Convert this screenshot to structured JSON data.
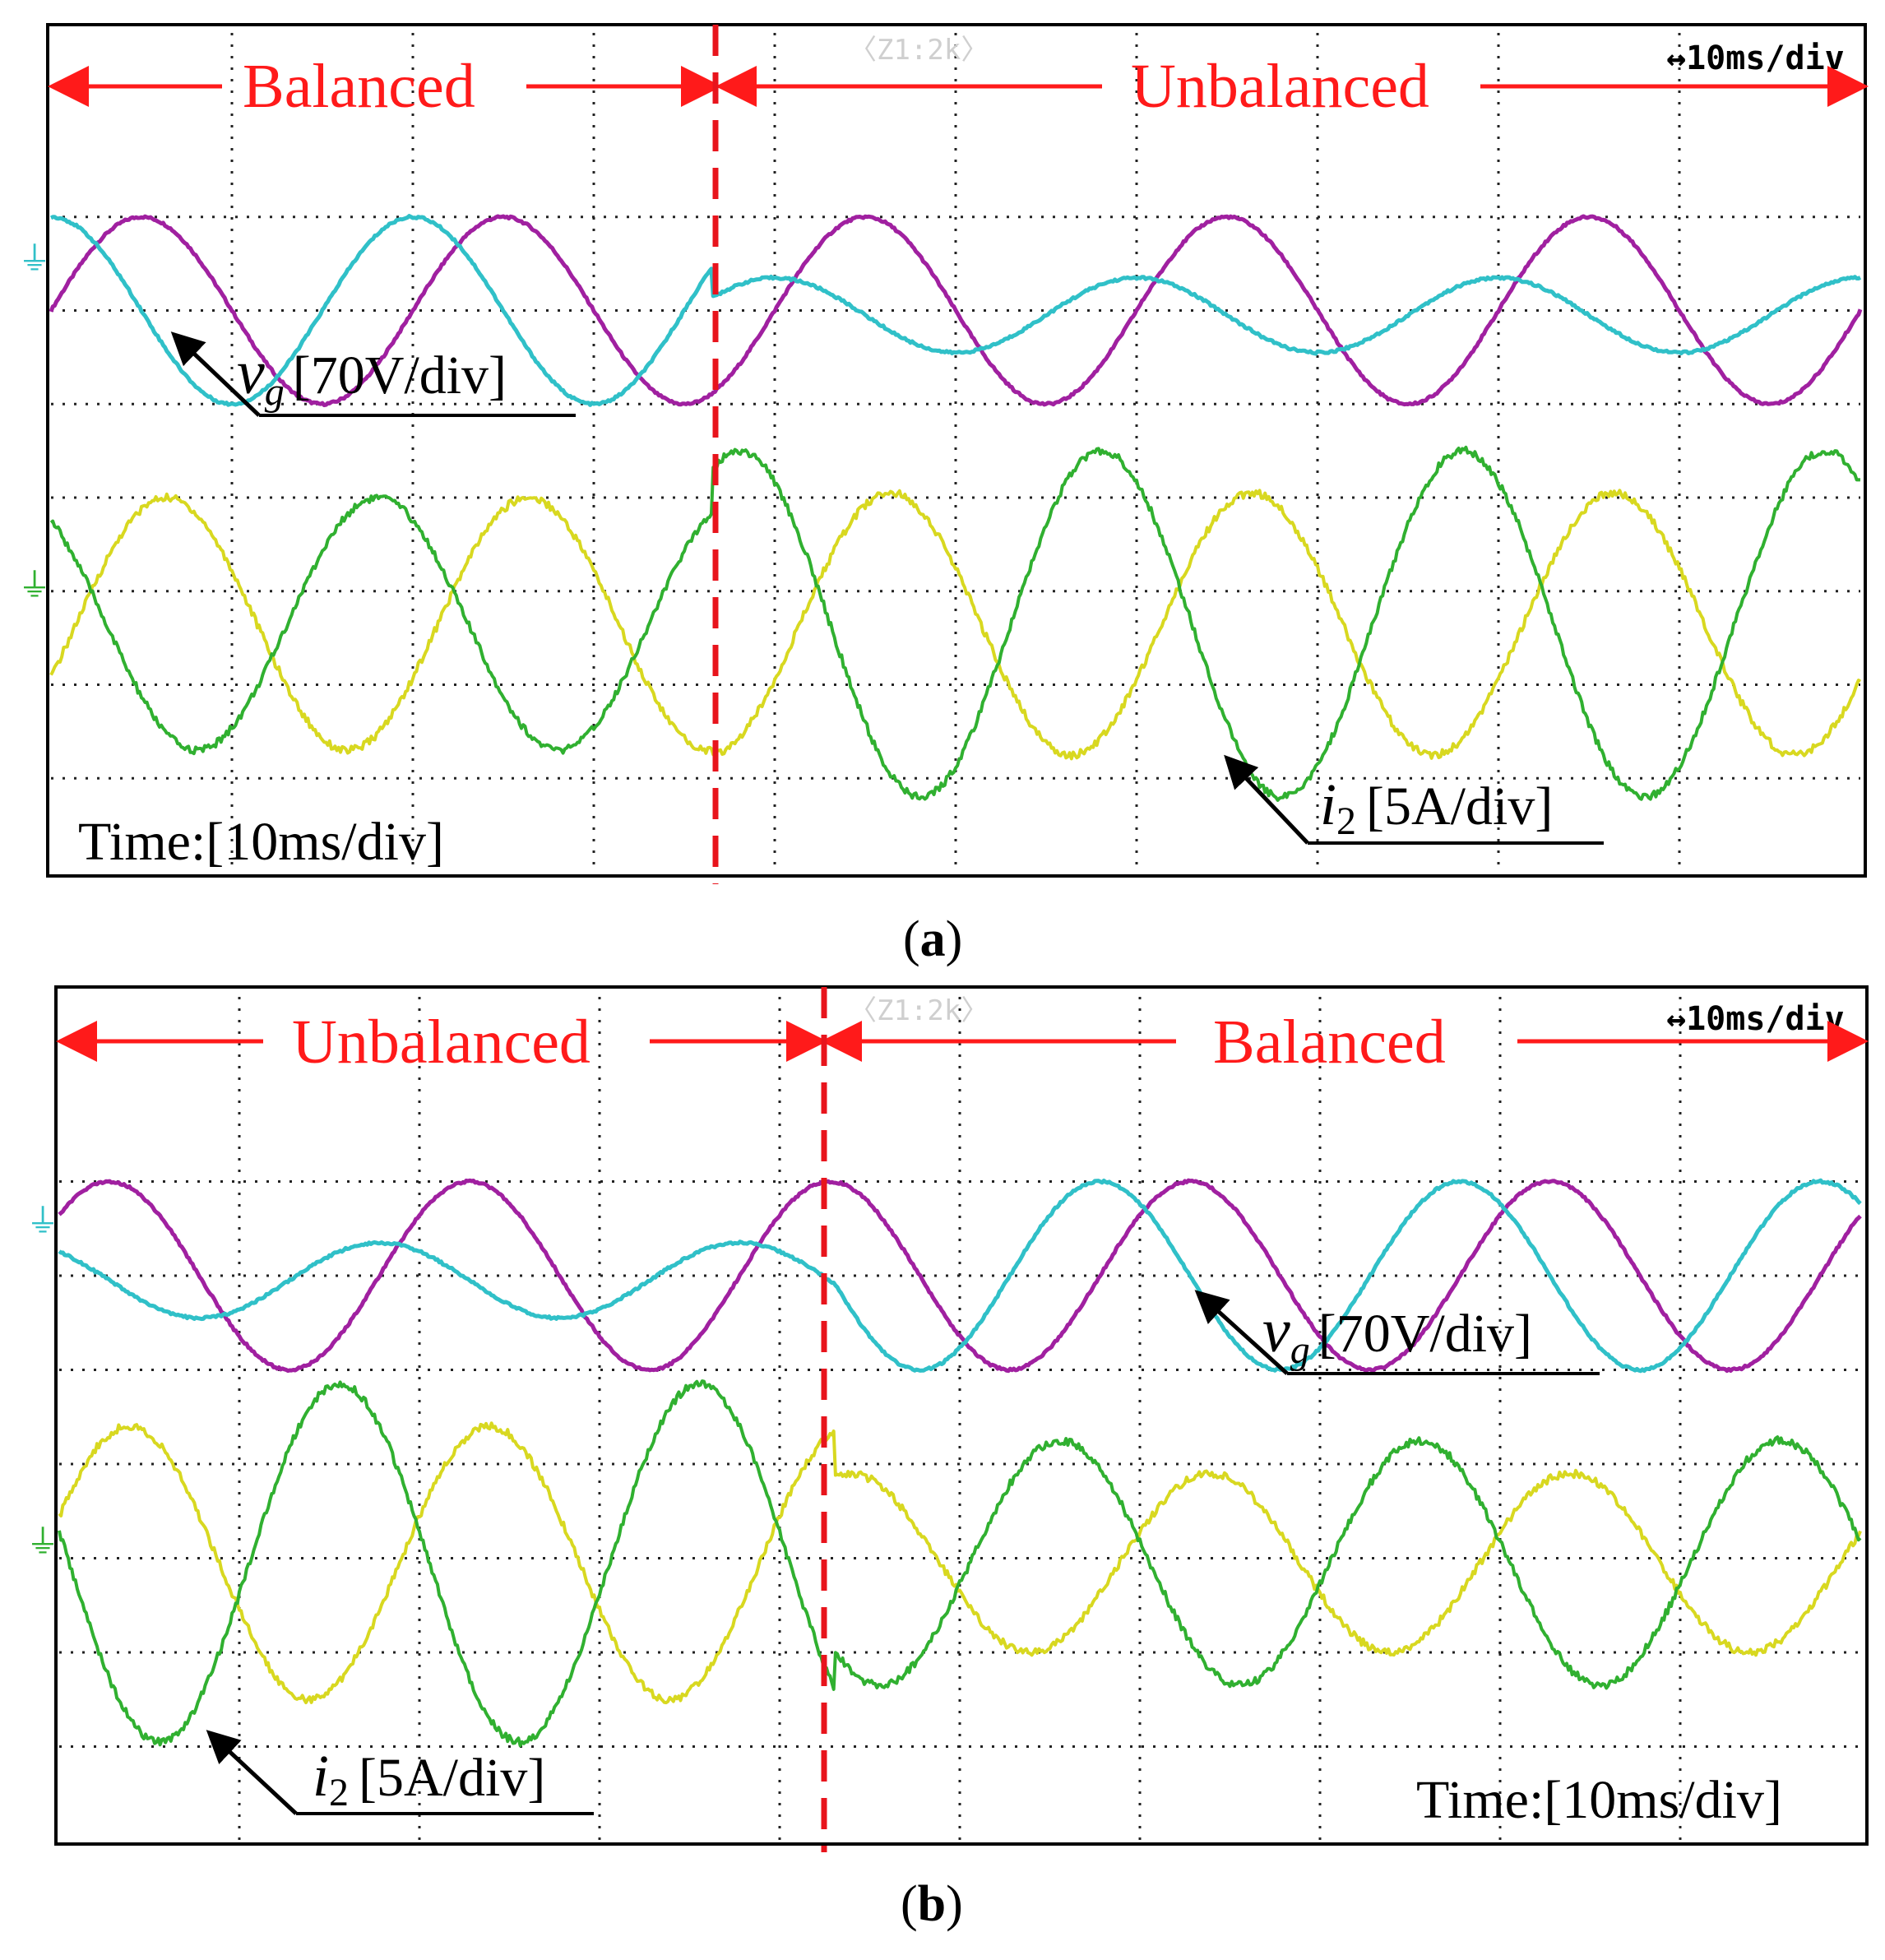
{
  "figure": {
    "panels": [
      "a",
      "b"
    ]
  },
  "chart_data": [
    {
      "type": "line",
      "panel": "a",
      "caption": "a",
      "time_label": "Time:[10ms/div]",
      "scale_header": "↔10ms/div",
      "zoom_header": "〈Z1:2k〉",
      "regions": [
        {
          "label": "Balanced",
          "from_div": 0,
          "to_div": 3.65
        },
        {
          "label": "Unbalanced",
          "from_div": 3.65,
          "to_div": 10
        }
      ],
      "transition_div": 3.65,
      "x_range_div": [
        0,
        10
      ],
      "y_range_div": [
        -4,
        4
      ],
      "grid": true,
      "period_div": 2.0,
      "annotations": [
        {
          "symbol": "v",
          "subscript": "g",
          "text": "[70V/div]"
        },
        {
          "symbol": "i",
          "subscript": "2",
          "text": "[5A/div]"
        }
      ],
      "series": [
        {
          "name": "vg phase 1",
          "color": "#a020a0",
          "group": "voltage",
          "amplitude_div": [
            1.0,
            1.0
          ],
          "offset_div": [
            2.0,
            2.0
          ],
          "phase_deg": 0
        },
        {
          "name": "vg phase 2",
          "color": "#30c0c8",
          "group": "voltage",
          "amplitude_div": [
            1.0,
            0.4
          ],
          "offset_div": [
            2.0,
            1.95
          ],
          "phase_deg": 90
        },
        {
          "name": "i2 phase 1",
          "color": "#d8d820",
          "group": "current",
          "amplitude_div": [
            1.35,
            1.4
          ],
          "offset_div": [
            -1.35,
            -1.35
          ],
          "phase_deg": -25
        },
        {
          "name": "i2 phase 2",
          "color": "#30b030",
          "group": "current",
          "amplitude_div": [
            1.35,
            1.85
          ],
          "offset_div": [
            -1.35,
            -1.35
          ],
          "phase_deg": 125
        }
      ]
    },
    {
      "type": "line",
      "panel": "b",
      "caption": "b",
      "time_label": "Time:[10ms/div]",
      "scale_header": "↔10ms/div",
      "zoom_header": "〈Z1:2k〉",
      "regions": [
        {
          "label": "Unbalanced",
          "from_div": 0,
          "to_div": 4.3
        },
        {
          "label": "Balanced",
          "from_div": 4.3,
          "to_div": 10
        }
      ],
      "transition_div": 4.3,
      "x_range_div": [
        0,
        10
      ],
      "y_range_div": [
        -4,
        4
      ],
      "grid": true,
      "period_div": 2.0,
      "annotations": [
        {
          "symbol": "v",
          "subscript": "g",
          "text": "[70V/div]"
        },
        {
          "symbol": "i",
          "subscript": "2",
          "text": "[5A/div]"
        }
      ],
      "series": [
        {
          "name": "vg phase 1",
          "color": "#a020a0",
          "group": "voltage",
          "amplitude_div": [
            1.0,
            1.0
          ],
          "offset_div": [
            2.0,
            2.0
          ],
          "phase_deg": 40
        },
        {
          "name": "vg phase 2",
          "color": "#30c0c8",
          "group": "voltage",
          "amplitude_div": [
            0.4,
            1.0
          ],
          "offset_div": [
            1.95,
            2.0
          ],
          "phase_deg": 130
        },
        {
          "name": "i2 phase 1",
          "color": "#d8d820",
          "group": "current",
          "amplitude_div": [
            1.45,
            0.95
          ],
          "offset_div": [
            -1.05,
            -1.05
          ],
          "phase_deg": 20
        },
        {
          "name": "i2 phase 2",
          "color": "#30b030",
          "group": "current",
          "amplitude_div": [
            1.9,
            1.3
          ],
          "offset_div": [
            -1.05,
            -1.05
          ],
          "phase_deg": 170
        }
      ]
    }
  ]
}
